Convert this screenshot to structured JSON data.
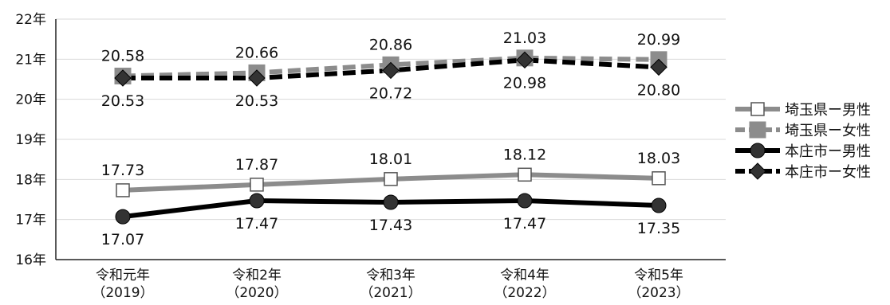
{
  "chart_data": {
    "type": "line",
    "title": "",
    "xlabel": "",
    "ylabel": "",
    "categories": [
      [
        "令和元年",
        "（2019）"
      ],
      [
        "令和2年",
        "（2020）"
      ],
      [
        "令和3年",
        "（2021）"
      ],
      [
        "令和4年",
        "（2022）"
      ],
      [
        "令和5年",
        "（2023）"
      ]
    ],
    "ylim": [
      16,
      22
    ],
    "yticks": [
      {
        "value": 16,
        "label": "16年"
      },
      {
        "value": 17,
        "label": "17年"
      },
      {
        "value": 18,
        "label": "18年"
      },
      {
        "value": 19,
        "label": "19年"
      },
      {
        "value": 20,
        "label": "20年"
      },
      {
        "value": 21,
        "label": "21年"
      },
      {
        "value": 22,
        "label": "22年"
      }
    ],
    "grid": true,
    "legend_position": "right",
    "series": [
      {
        "name": "埼玉県ー男性",
        "values": [
          17.73,
          17.87,
          18.01,
          18.12,
          18.03
        ],
        "labels": [
          "17.73",
          "17.87",
          "18.01",
          "18.12",
          "18.03"
        ],
        "label_position": "above",
        "color": "#8c8c8c",
        "dash": "solid",
        "marker": "square-open"
      },
      {
        "name": "埼玉県ー女性",
        "values": [
          20.58,
          20.66,
          20.86,
          21.03,
          20.99
        ],
        "labels": [
          "20.58",
          "20.66",
          "20.86",
          "21.03",
          "20.99"
        ],
        "label_position": "above",
        "color": "#8c8c8c",
        "dash": "dashed",
        "marker": "square-filled"
      },
      {
        "name": "本庄市ー男性",
        "values": [
          17.07,
          17.47,
          17.43,
          17.47,
          17.35
        ],
        "labels": [
          "17.07",
          "17.47",
          "17.43",
          "17.47",
          "17.35"
        ],
        "label_position": "below",
        "color": "#000000",
        "dash": "solid",
        "marker": "circle"
      },
      {
        "name": "本庄市ー女性",
        "values": [
          20.53,
          20.53,
          20.72,
          20.98,
          20.8
        ],
        "labels": [
          "20.53",
          "20.53",
          "20.72",
          "20.98",
          "20.80"
        ],
        "label_position": "below",
        "color": "#000000",
        "dash": "dashed",
        "marker": "diamond"
      }
    ]
  }
}
